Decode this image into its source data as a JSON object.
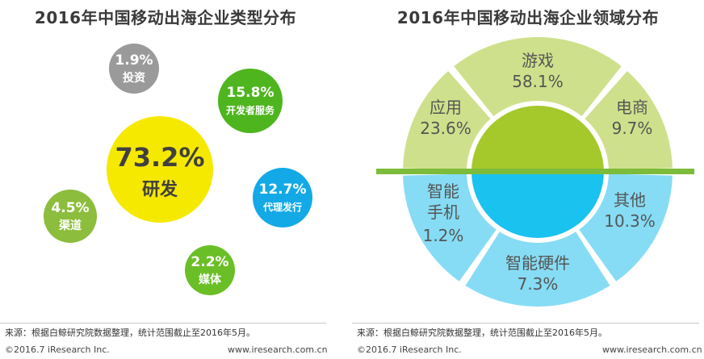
{
  "chart_data": [
    {
      "type": "bubble",
      "title": "2016年中国移动出海企业类型分布",
      "items": [
        {
          "label": "研发",
          "value": 73.2,
          "value_text": "73.2%",
          "color": "#f6e900",
          "text_color": "#404040"
        },
        {
          "label": "开发者服务",
          "value": 15.8,
          "value_text": "15.8%",
          "color": "#4fb51f",
          "text_color": "#ffffff"
        },
        {
          "label": "代理发行",
          "value": 12.7,
          "value_text": "12.7%",
          "color": "#12a9e6",
          "text_color": "#ffffff"
        },
        {
          "label": "渠道",
          "value": 4.5,
          "value_text": "4.5%",
          "color": "#8cbd3c",
          "text_color": "#ffffff"
        },
        {
          "label": "媒体",
          "value": 2.2,
          "value_text": "2.2%",
          "color": "#6bbf26",
          "text_color": "#ffffff"
        },
        {
          "label": "投资",
          "value": 1.9,
          "value_text": "1.9%",
          "color": "#9a9a9a",
          "text_color": "#ffffff"
        }
      ]
    },
    {
      "type": "pie",
      "title": "2016年中国移动出海企业领域分布",
      "slices": [
        {
          "label": "游戏",
          "value": 58.1,
          "value_text": "58.1%",
          "color": "#cfe08c"
        },
        {
          "label": "电商",
          "value": 9.7,
          "value_text": "9.7%",
          "color": "#cfe08c"
        },
        {
          "label": "其他",
          "value": 10.3,
          "value_text": "10.3%",
          "color": "#86dcf4"
        },
        {
          "label": "智能硬件",
          "value": 7.3,
          "value_text": "7.3%",
          "color": "#86dcf4"
        },
        {
          "label": "智能手机",
          "value": 1.2,
          "value_text": "1.2%",
          "color": "#86dcf4"
        },
        {
          "label": "应用",
          "value": 23.6,
          "value_text": "23.6%",
          "color": "#cfe08c"
        }
      ],
      "center_top_color": "#a5c82b",
      "center_bottom_color": "#1ac2ef",
      "band_color": "#7dbc3a"
    }
  ],
  "note": "来源：根据白鲸研究院数据整理，统计范围截止至2016年5月。",
  "footer": {
    "copyright": "©2016.7 iResearch Inc.",
    "website": "www.iresearch.com.cn"
  }
}
